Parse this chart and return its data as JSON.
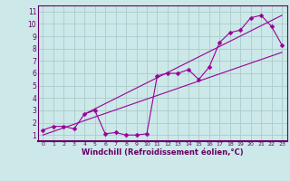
{
  "xlabel": "Windchill (Refroidissement éolien,°C)",
  "bg_color": "#cce8e8",
  "line_color": "#990099",
  "grid_color": "#aacccc",
  "x_data": [
    0,
    1,
    2,
    3,
    4,
    5,
    6,
    7,
    8,
    9,
    10,
    11,
    12,
    13,
    14,
    15,
    16,
    17,
    18,
    19,
    20,
    21,
    22,
    23
  ],
  "y_scatter": [
    1.4,
    1.7,
    1.7,
    1.5,
    2.7,
    3.0,
    1.1,
    1.2,
    1.0,
    1.0,
    1.1,
    5.8,
    6.0,
    6.0,
    6.3,
    5.5,
    6.5,
    8.5,
    9.3,
    9.5,
    10.5,
    10.7,
    9.8,
    8.3
  ],
  "trend1_x": [
    0,
    23
  ],
  "trend1_y": [
    1.0,
    7.7
  ],
  "trend2_x": [
    4,
    23
  ],
  "trend2_y": [
    2.7,
    10.7
  ],
  "xlim": [
    -0.5,
    23.5
  ],
  "ylim": [
    0.5,
    11.5
  ],
  "yticks": [
    1,
    2,
    3,
    4,
    5,
    6,
    7,
    8,
    9,
    10,
    11
  ],
  "xticks": [
    0,
    1,
    2,
    3,
    4,
    5,
    6,
    7,
    8,
    9,
    10,
    11,
    12,
    13,
    14,
    15,
    16,
    17,
    18,
    19,
    20,
    21,
    22,
    23
  ],
  "axis_label_color": "#660066",
  "tick_label_color": "#660066",
  "spine_color": "#660066",
  "xlabel_fontsize": 6.0,
  "xlabel_fontweight": "bold",
  "tick_fontsize_x": 4.5,
  "tick_fontsize_y": 5.5
}
